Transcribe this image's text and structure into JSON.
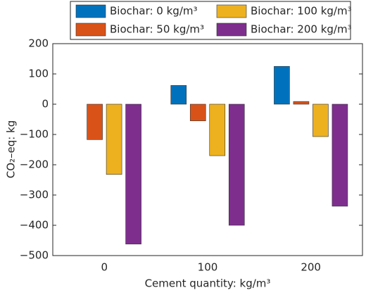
{
  "chart_data": {
    "type": "bar",
    "xlabel": "Cement quantity: kg/m³",
    "ylabel": "CO₂–eq: kg",
    "categories": [
      "0",
      "100",
      "200"
    ],
    "series": [
      {
        "name": "Biochar: 0 kg/m³",
        "color": "#0072bd",
        "values": [
          0,
          62,
          125
        ]
      },
      {
        "name": "Biochar: 50 kg/m³",
        "color": "#d95319",
        "values": [
          -117,
          -55,
          9
        ]
      },
      {
        "name": "Biochar: 100 kg/m³",
        "color": "#edb120",
        "values": [
          -232,
          -170,
          -107
        ]
      },
      {
        "name": "Biochar: 200 kg/m³",
        "color": "#7e2f8e",
        "values": [
          -462,
          -400,
          -337
        ]
      }
    ],
    "ylim": [
      -500,
      200
    ],
    "yticks": [
      {
        "value": -500,
        "label": "−500"
      },
      {
        "value": -400,
        "label": "−400"
      },
      {
        "value": -300,
        "label": "−300"
      },
      {
        "value": -200,
        "label": "−200"
      },
      {
        "value": -100,
        "label": "−100"
      },
      0,
      100,
      200
    ],
    "legend": "top"
  }
}
